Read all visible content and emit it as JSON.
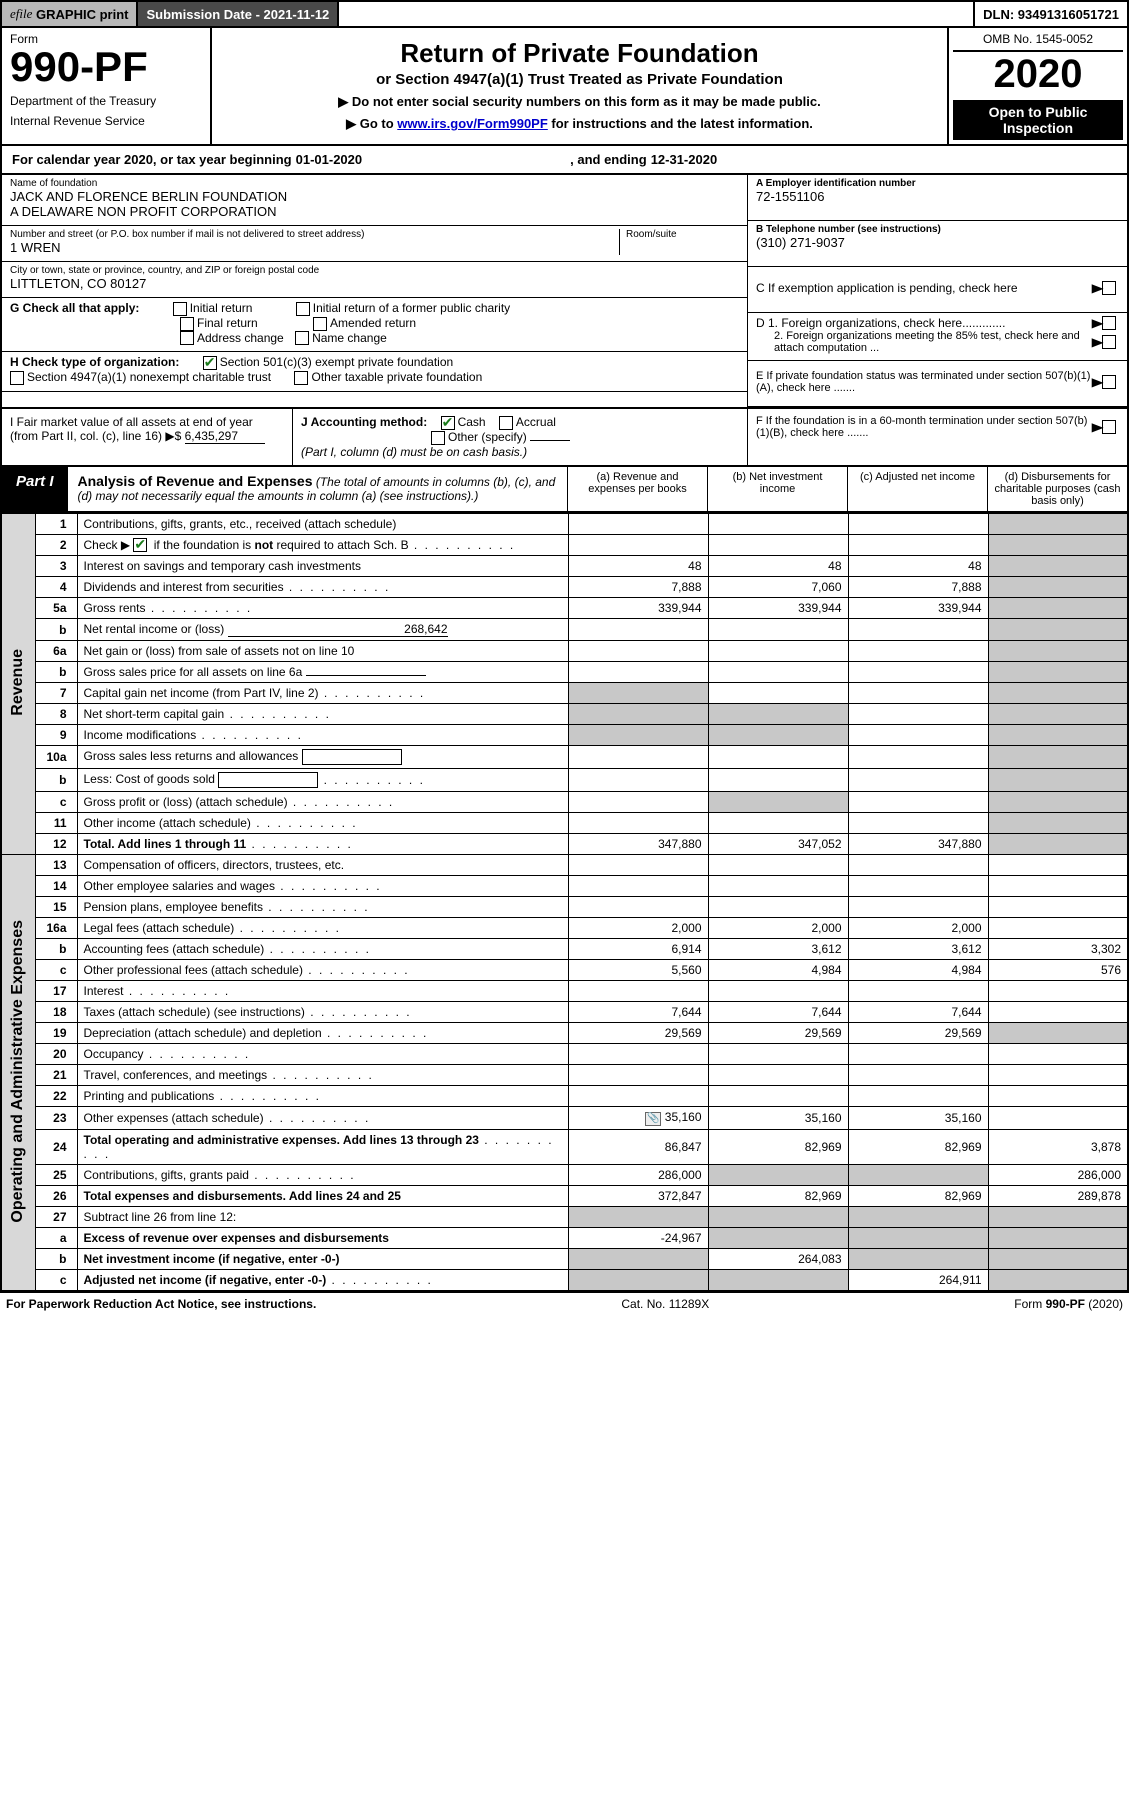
{
  "topbar": {
    "efile_label": "efile GRAPHIC print",
    "submission_label": "Submission Date - 2021-11-12",
    "dln_label": "DLN: 93491316051721"
  },
  "formhead": {
    "form_word": "Form",
    "form_number": "990-PF",
    "dept1": "Department of the Treasury",
    "dept2": "Internal Revenue Service",
    "title": "Return of Private Foundation",
    "subtitle": "or Section 4947(a)(1) Trust Treated as Private Foundation",
    "note1": "▶ Do not enter social security numbers on this form as it may be made public.",
    "note2_pre": "▶ Go to ",
    "note2_link": "www.irs.gov/Form990PF",
    "note2_post": " for instructions and the latest information.",
    "omb": "OMB No. 1545-0052",
    "year": "2020",
    "open": "Open to Public Inspection"
  },
  "calendar": {
    "prefix": "For calendar year 2020, or tax year beginning ",
    "begin": "01-01-2020",
    "mid": ", and ending ",
    "end": "12-31-2020"
  },
  "id": {
    "name_label": "Name of foundation",
    "name1": "JACK AND FLORENCE BERLIN FOUNDATION",
    "name2": "A DELAWARE NON PROFIT CORPORATION",
    "addr_label": "Number and street (or P.O. box number if mail is not delivered to street address)",
    "addr": "1 WREN",
    "room_label": "Room/suite",
    "city_label": "City or town, state or province, country, and ZIP or foreign postal code",
    "city": "LITTLETON, CO  80127",
    "ein_label": "A Employer identification number",
    "ein": "72-1551106",
    "tel_label": "B Telephone number (see instructions)",
    "tel": "(310) 271-9037",
    "c_label": "C If exemption application is pending, check here",
    "d1_label": "D 1. Foreign organizations, check here.............",
    "d2_label": "2. Foreign organizations meeting the 85% test, check here and attach computation ...",
    "e_label": "E  If private foundation status was terminated under section 507(b)(1)(A), check here .......",
    "f_label": "F  If the foundation is in a 60-month termination under section 507(b)(1)(B), check here .......",
    "g_label": "G Check all that apply:",
    "g_opts": [
      "Initial return",
      "Final return",
      "Address change",
      "Initial return of a former public charity",
      "Amended return",
      "Name change"
    ],
    "h_label": "H Check type of organization:",
    "h_opt1": "Section 501(c)(3) exempt private foundation",
    "h_opt2": "Section 4947(a)(1) nonexempt charitable trust",
    "h_opt3": "Other taxable private foundation",
    "i_label": "I Fair market value of all assets at end of year (from Part II, col. (c), line 16) ▶$ ",
    "i_val": "6,435,297",
    "j_label": "J Accounting method:",
    "j_cash": "Cash",
    "j_accrual": "Accrual",
    "j_other": "Other (specify)",
    "j_note": "(Part I, column (d) must be on cash basis.)"
  },
  "part1": {
    "label": "Part I",
    "title_bold": "Analysis of Revenue and Expenses",
    "title_rest": " (The total of amounts in columns (b), (c), and (d) may not necessarily equal the amounts in column (a) (see instructions).)",
    "col_a": "(a)   Revenue and expenses per books",
    "col_b": "(b)   Net investment income",
    "col_c": "(c)   Adjusted net income",
    "col_d": "(d)  Disbursements for charitable purposes (cash basis only)"
  },
  "sidelabels": {
    "revenue": "Revenue",
    "expenses": "Operating and Administrative Expenses"
  },
  "rows": [
    {
      "n": "1",
      "desc": "Contributions, gifts, grants, etc., received (attach schedule)"
    },
    {
      "n": "2",
      "desc": "Check ▶ [✔] if the foundation is not required to attach Sch. B",
      "dots": true
    },
    {
      "n": "3",
      "desc": "Interest on savings and temporary cash investments",
      "a": "48",
      "b": "48",
      "c": "48"
    },
    {
      "n": "4",
      "desc": "Dividends and interest from securities",
      "dots": true,
      "a": "7,888",
      "b": "7,060",
      "c": "7,888"
    },
    {
      "n": "5a",
      "desc": "Gross rents",
      "dots": true,
      "a": "339,944",
      "b": "339,944",
      "c": "339,944"
    },
    {
      "n": "b",
      "desc": "Net rental income or (loss)",
      "inline_val": "268,642"
    },
    {
      "n": "6a",
      "desc": "Net gain or (loss) from sale of assets not on line 10"
    },
    {
      "n": "b",
      "desc": "Gross sales price for all assets on line 6a",
      "inline_underline": true
    },
    {
      "n": "7",
      "desc": "Capital gain net income (from Part IV, line 2)",
      "dots": true,
      "shade_a": true
    },
    {
      "n": "8",
      "desc": "Net short-term capital gain",
      "dots": true,
      "shade_a": true,
      "shade_b": true
    },
    {
      "n": "9",
      "desc": "Income modifications",
      "dots": true,
      "shade_a": true,
      "shade_b": true
    },
    {
      "n": "10a",
      "desc": "Gross sales less returns and allowances",
      "inline_box": true
    },
    {
      "n": "b",
      "desc": "Less: Cost of goods sold",
      "dots": true,
      "inline_box": true
    },
    {
      "n": "c",
      "desc": "Gross profit or (loss) (attach schedule)",
      "dots": true,
      "shade_b": true
    },
    {
      "n": "11",
      "desc": "Other income (attach schedule)",
      "dots": true
    },
    {
      "n": "12",
      "desc": "Total. Add lines 1 through 11",
      "dots": true,
      "bold": true,
      "a": "347,880",
      "b": "347,052",
      "c": "347,880"
    },
    {
      "n": "13",
      "desc": "Compensation of officers, directors, trustees, etc.",
      "section": "exp"
    },
    {
      "n": "14",
      "desc": "Other employee salaries and wages",
      "dots": true
    },
    {
      "n": "15",
      "desc": "Pension plans, employee benefits",
      "dots": true
    },
    {
      "n": "16a",
      "desc": "Legal fees (attach schedule)",
      "dots": true,
      "a": "2,000",
      "b": "2,000",
      "c": "2,000"
    },
    {
      "n": "b",
      "desc": "Accounting fees (attach schedule)",
      "dots": true,
      "a": "6,914",
      "b": "3,612",
      "c": "3,612",
      "d": "3,302"
    },
    {
      "n": "c",
      "desc": "Other professional fees (attach schedule)",
      "dots": true,
      "a": "5,560",
      "b": "4,984",
      "c": "4,984",
      "d": "576"
    },
    {
      "n": "17",
      "desc": "Interest",
      "dots": true
    },
    {
      "n": "18",
      "desc": "Taxes (attach schedule) (see instructions)",
      "dots": true,
      "a": "7,644",
      "b": "7,644",
      "c": "7,644"
    },
    {
      "n": "19",
      "desc": "Depreciation (attach schedule) and depletion",
      "dots": true,
      "a": "29,569",
      "b": "29,569",
      "c": "29,569",
      "shade_d": true
    },
    {
      "n": "20",
      "desc": "Occupancy",
      "dots": true
    },
    {
      "n": "21",
      "desc": "Travel, conferences, and meetings",
      "dots": true
    },
    {
      "n": "22",
      "desc": "Printing and publications",
      "dots": true
    },
    {
      "n": "23",
      "desc": "Other expenses (attach schedule)",
      "dots": true,
      "icon": true,
      "a": "35,160",
      "b": "35,160",
      "c": "35,160"
    },
    {
      "n": "24",
      "desc": "Total operating and administrative expenses. Add lines 13 through 23",
      "dots": true,
      "bold": true,
      "a": "86,847",
      "b": "82,969",
      "c": "82,969",
      "d": "3,878"
    },
    {
      "n": "25",
      "desc": "Contributions, gifts, grants paid",
      "dots": true,
      "a": "286,000",
      "shade_b": true,
      "shade_c": true,
      "d": "286,000"
    },
    {
      "n": "26",
      "desc": "Total expenses and disbursements. Add lines 24 and 25",
      "bold": true,
      "a": "372,847",
      "b": "82,969",
      "c": "82,969",
      "d": "289,878"
    },
    {
      "n": "27",
      "desc": "Subtract line 26 from line 12:",
      "shade_all": true
    },
    {
      "n": "a",
      "desc": "Excess of revenue over expenses and disbursements",
      "bold": true,
      "a": "-24,967",
      "shade_b": true,
      "shade_c": true,
      "shade_d": true
    },
    {
      "n": "b",
      "desc": "Net investment income (if negative, enter -0-)",
      "bold": true,
      "shade_a": true,
      "b": "264,083",
      "shade_c": true,
      "shade_d": true
    },
    {
      "n": "c",
      "desc": "Adjusted net income (if negative, enter -0-)",
      "bold": true,
      "dots": true,
      "shade_a": true,
      "shade_b": true,
      "c": "264,911",
      "shade_d": true
    }
  ],
  "footer": {
    "left": "For Paperwork Reduction Act Notice, see instructions.",
    "mid": "Cat. No. 11289X",
    "right": "Form 990-PF (2020)"
  }
}
